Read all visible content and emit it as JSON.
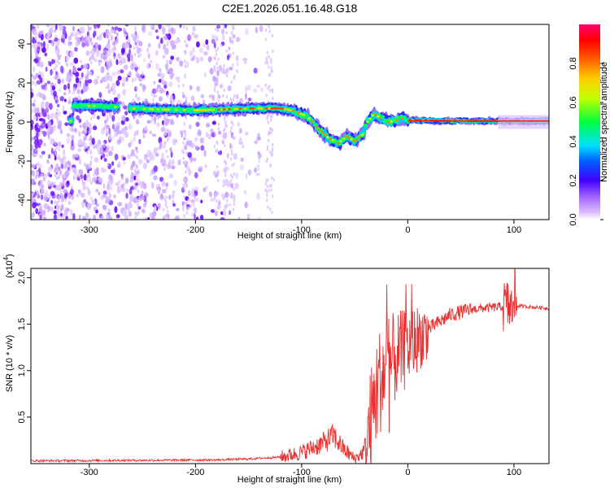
{
  "title": "C2E1.2026.051.16.48.G18",
  "chart_data": [
    {
      "type": "heatmap",
      "xlabel": "Height of straight line (km)",
      "ylabel": "Frequency (Hz)",
      "xlim": [
        -355,
        133
      ],
      "ylim": [
        -50,
        50
      ],
      "x_ticks": [
        -300,
        -200,
        -100,
        0,
        100
      ],
      "y_ticks": [
        -40,
        -20,
        0,
        20,
        40
      ],
      "colorbar": {
        "label": "Normalized spectral amplitude",
        "range": [
          0,
          1
        ],
        "ticks": [
          "0.0",
          "0.2",
          "0.4",
          "0.6",
          "0.8"
        ],
        "tick_values": [
          0,
          0.2,
          0.4,
          0.6,
          0.8
        ],
        "colors": [
          "#ffffff",
          "#c9a4ff",
          "#8a2be2",
          "#0000ff",
          "#00ffff",
          "#00ff00",
          "#ffff00",
          "#ff7f00",
          "#ff0000",
          "#ff0080"
        ]
      },
      "ridge": [
        {
          "x": -315,
          "y": 8.5
        },
        {
          "x": -280,
          "y": 8
        },
        {
          "x": -265,
          "y": 7
        },
        {
          "x": -240,
          "y": 6.5
        },
        {
          "x": -200,
          "y": 6
        },
        {
          "x": -170,
          "y": 6.5
        },
        {
          "x": -140,
          "y": 7
        },
        {
          "x": -120,
          "y": 7
        },
        {
          "x": -110,
          "y": 6
        },
        {
          "x": -95,
          "y": 3
        },
        {
          "x": -85,
          "y": -3
        },
        {
          "x": -75,
          "y": -8
        },
        {
          "x": -65,
          "y": -11
        },
        {
          "x": -58,
          "y": -7
        },
        {
          "x": -50,
          "y": -10
        },
        {
          "x": -42,
          "y": -6
        },
        {
          "x": -38,
          "y": 0
        },
        {
          "x": -32,
          "y": 4
        },
        {
          "x": -25,
          "y": 2
        },
        {
          "x": -18,
          "y": 0
        },
        {
          "x": -10,
          "y": 1
        },
        {
          "x": -5,
          "y": 2
        },
        {
          "x": 0,
          "y": 1
        },
        {
          "x": 40,
          "y": 0.5
        },
        {
          "x": 90,
          "y": 0.5
        },
        {
          "x": 133,
          "y": 0.5
        }
      ]
    },
    {
      "type": "line",
      "xlabel": "Height of straight line (km)",
      "ylabel": "SNR (10 * v/v)",
      "y_multiplier": "(x10",
      "y_multiplier_exp": "4",
      "y_multiplier_close": ")",
      "xlim": [
        -355,
        133
      ],
      "ylim": [
        0,
        2.1
      ],
      "x_ticks": [
        -300,
        -200,
        -100,
        0,
        100
      ],
      "y_ticks": [
        "0.5",
        "1.0",
        "1.5",
        "2.0"
      ],
      "y_tick_values": [
        0.5,
        1.0,
        1.5,
        2.0
      ],
      "color": "#e83030",
      "envelope": [
        {
          "x": -355,
          "y": 0.03
        },
        {
          "x": -250,
          "y": 0.035
        },
        {
          "x": -180,
          "y": 0.04
        },
        {
          "x": -150,
          "y": 0.05
        },
        {
          "x": -120,
          "y": 0.07
        },
        {
          "x": -100,
          "y": 0.12
        },
        {
          "x": -80,
          "y": 0.22
        },
        {
          "x": -70,
          "y": 0.3
        },
        {
          "x": -60,
          "y": 0.15
        },
        {
          "x": -50,
          "y": 0.05
        },
        {
          "x": -42,
          "y": 0.12
        },
        {
          "x": -35,
          "y": 0.4
        },
        {
          "x": -28,
          "y": 0.85
        },
        {
          "x": -20,
          "y": 1.05
        },
        {
          "x": -10,
          "y": 1.15
        },
        {
          "x": 0,
          "y": 1.25
        },
        {
          "x": 20,
          "y": 1.45
        },
        {
          "x": 40,
          "y": 1.6
        },
        {
          "x": 60,
          "y": 1.66
        },
        {
          "x": 80,
          "y": 1.68
        },
        {
          "x": 100,
          "y": 1.7
        },
        {
          "x": 133,
          "y": 1.67
        }
      ]
    }
  ]
}
